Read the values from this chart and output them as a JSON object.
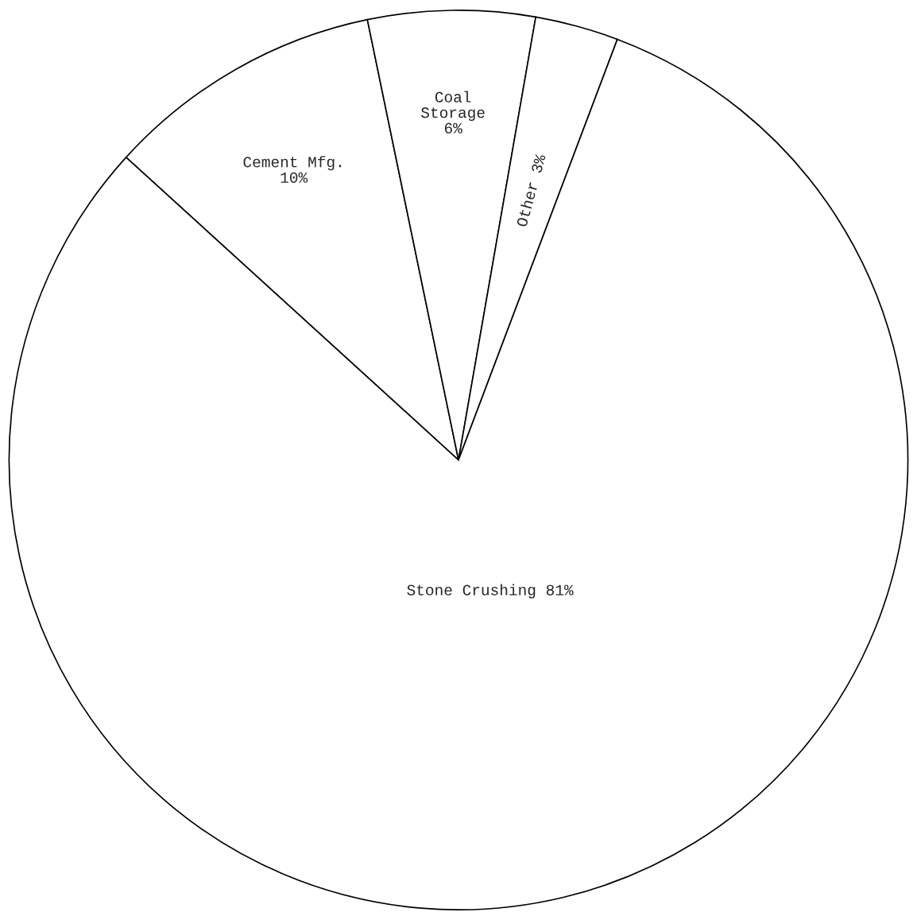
{
  "chart_data": {
    "type": "pie",
    "categories": [
      "Cement Mfg.",
      "Coal Storage",
      "Other",
      "Stone Crushing"
    ],
    "values": [
      10,
      6,
      3,
      81
    ],
    "value_labels": [
      "10%",
      "6%",
      "3%",
      "81%"
    ],
    "colors": [
      "#ffffff",
      "#ffffff",
      "#ffffff",
      "#ffffff"
    ]
  }
}
